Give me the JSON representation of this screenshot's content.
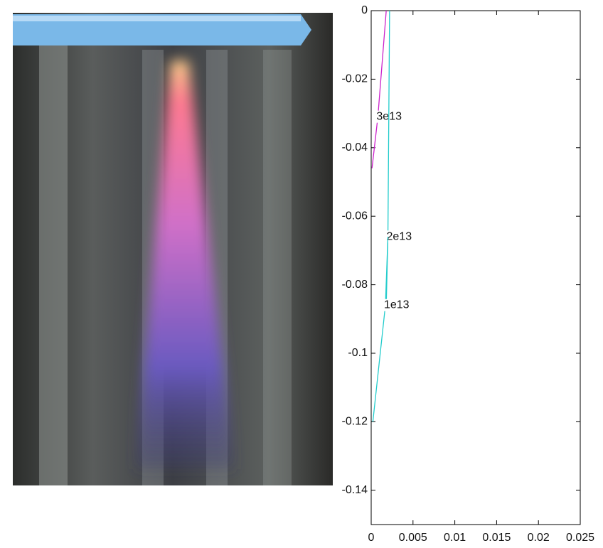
{
  "chart_data": {
    "type": "contour",
    "xlim": [
      0,
      0.025
    ],
    "xticks": [
      0,
      0.005,
      0.01,
      0.015,
      0.02,
      0.025
    ],
    "ylim": [
      -0.15,
      0
    ],
    "yticks": [
      0,
      -0.02,
      -0.04,
      -0.06,
      -0.08,
      -0.1,
      -0.12,
      -0.14
    ],
    "series": [
      {
        "name": "3e13",
        "color": "#cc22cc",
        "x": [
          0.0018,
          0.0008,
          0.0001
        ],
        "values": [
          0,
          -0.031,
          -0.046
        ]
      },
      {
        "name": "2e13",
        "color": "#22cccc",
        "x": [
          0.0022,
          0.002,
          0.0018
        ],
        "values": [
          0,
          -0.066,
          -0.086
        ]
      },
      {
        "name": "1e13",
        "color": "#22cccc",
        "x": [
          0.002,
          0.0017,
          0.0002
        ],
        "values": [
          -0.066,
          -0.086,
          -0.12
        ]
      }
    ]
  }
}
